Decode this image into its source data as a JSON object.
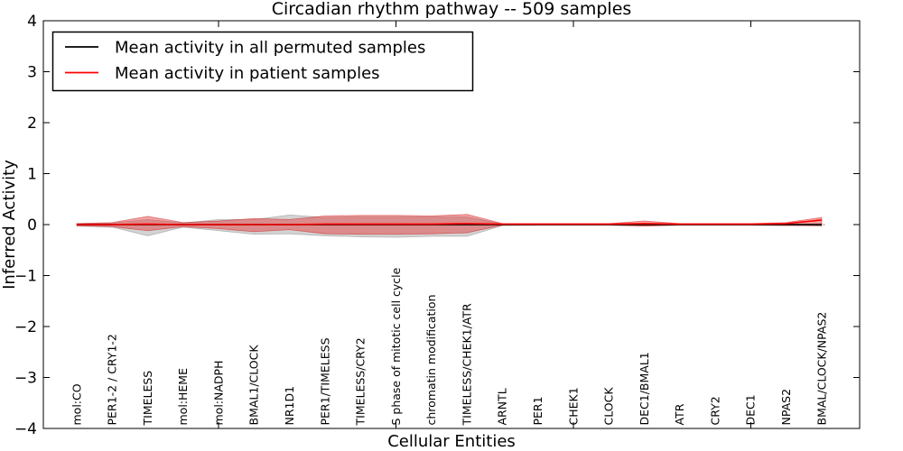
{
  "chart_data": {
    "type": "area",
    "title": "Circadian rhythm pathway -- 509 samples",
    "xlabel": "Cellular Entities",
    "ylabel": "Inferred Activity",
    "ylim": [
      -4,
      4
    ],
    "grid": false,
    "legend_position": "upper left",
    "y_ticks": {
      "values": [
        4,
        3,
        2,
        1,
        0,
        -1,
        -2,
        -3,
        -4
      ],
      "labels": [
        "4",
        "3",
        "2",
        "1",
        "0",
        "−1",
        "−2",
        "−3",
        "−4"
      ]
    },
    "x_major_tick_indices": [
      4,
      9,
      14,
      19
    ],
    "categories": [
      "mol:CO",
      "PER1-2 / CRY1-2",
      "TIMELESS",
      "mol:HEME",
      "mol:NADPH",
      "BMAL1/CLOCK",
      "NR1D1",
      "PER1/TIMELESS",
      "TIMELESS/CRY2",
      "S phase of mitotic cell cycle",
      "chromatin modification",
      "TIMELESS/CHEK1/ATR",
      "ARNTL",
      "PER1",
      "CHEK1",
      "CLOCK",
      "DEC1/BMAL1",
      "ATR",
      "CRY2",
      "DEC1",
      "NPAS2",
      "BMAL/CLOCK/NPAS2"
    ],
    "zero_line": {
      "y": 0,
      "style": "dotted",
      "color": "#000000"
    },
    "series": [
      {
        "name": "Mean activity in all permuted samples",
        "color": "#000000",
        "band_fill": "rgba(130,130,130,0.35)",
        "band_edge": "rgba(120,120,120,0.45)",
        "mean": [
          0,
          0,
          0,
          0,
          0,
          0,
          0,
          0,
          0,
          0,
          0,
          0,
          0,
          0,
          0,
          0,
          0,
          0,
          0,
          0,
          0,
          0
        ],
        "band_low": [
          -0.03,
          -0.05,
          -0.22,
          -0.05,
          -0.12,
          -0.19,
          -0.18,
          -0.22,
          -0.24,
          -0.25,
          -0.23,
          -0.23,
          -0.02,
          -0.01,
          -0.01,
          -0.01,
          -0.02,
          -0.01,
          -0.01,
          -0.01,
          -0.01,
          -0.03
        ],
        "band_high": [
          0.02,
          0.03,
          0.1,
          0.03,
          0.1,
          0.1,
          0.19,
          0.14,
          0.15,
          0.15,
          0.15,
          0.15,
          0.01,
          0.01,
          0.01,
          0.01,
          0.02,
          0.01,
          0.01,
          0.01,
          0.01,
          0.02
        ]
      },
      {
        "name": "Mean activity in patient samples",
        "color": "#ff0000",
        "band_fill": "rgba(230,40,40,0.42)",
        "band_edge": "rgba(205,30,30,0.55)",
        "mean": [
          0,
          0,
          0.01,
          0,
          0,
          0,
          0,
          0.01,
          0.01,
          0.01,
          0.01,
          0.02,
          0.01,
          0.01,
          0.01,
          0.01,
          0.02,
          0.01,
          0.01,
          0.01,
          0.02,
          0.09
        ],
        "band_low": [
          -0.02,
          -0.04,
          -0.12,
          -0.04,
          -0.08,
          -0.14,
          -0.1,
          -0.18,
          -0.19,
          -0.19,
          -0.18,
          -0.16,
          -0.01,
          -0.01,
          -0.01,
          -0.01,
          -0.03,
          -0.01,
          -0.01,
          -0.01,
          -0.02,
          -0.02
        ],
        "band_high": [
          0.02,
          0.04,
          0.16,
          0.04,
          0.07,
          0.12,
          0.1,
          0.17,
          0.18,
          0.18,
          0.17,
          0.2,
          0.02,
          0.02,
          0.02,
          0.02,
          0.07,
          0.02,
          0.02,
          0.02,
          0.04,
          0.14
        ]
      }
    ]
  }
}
